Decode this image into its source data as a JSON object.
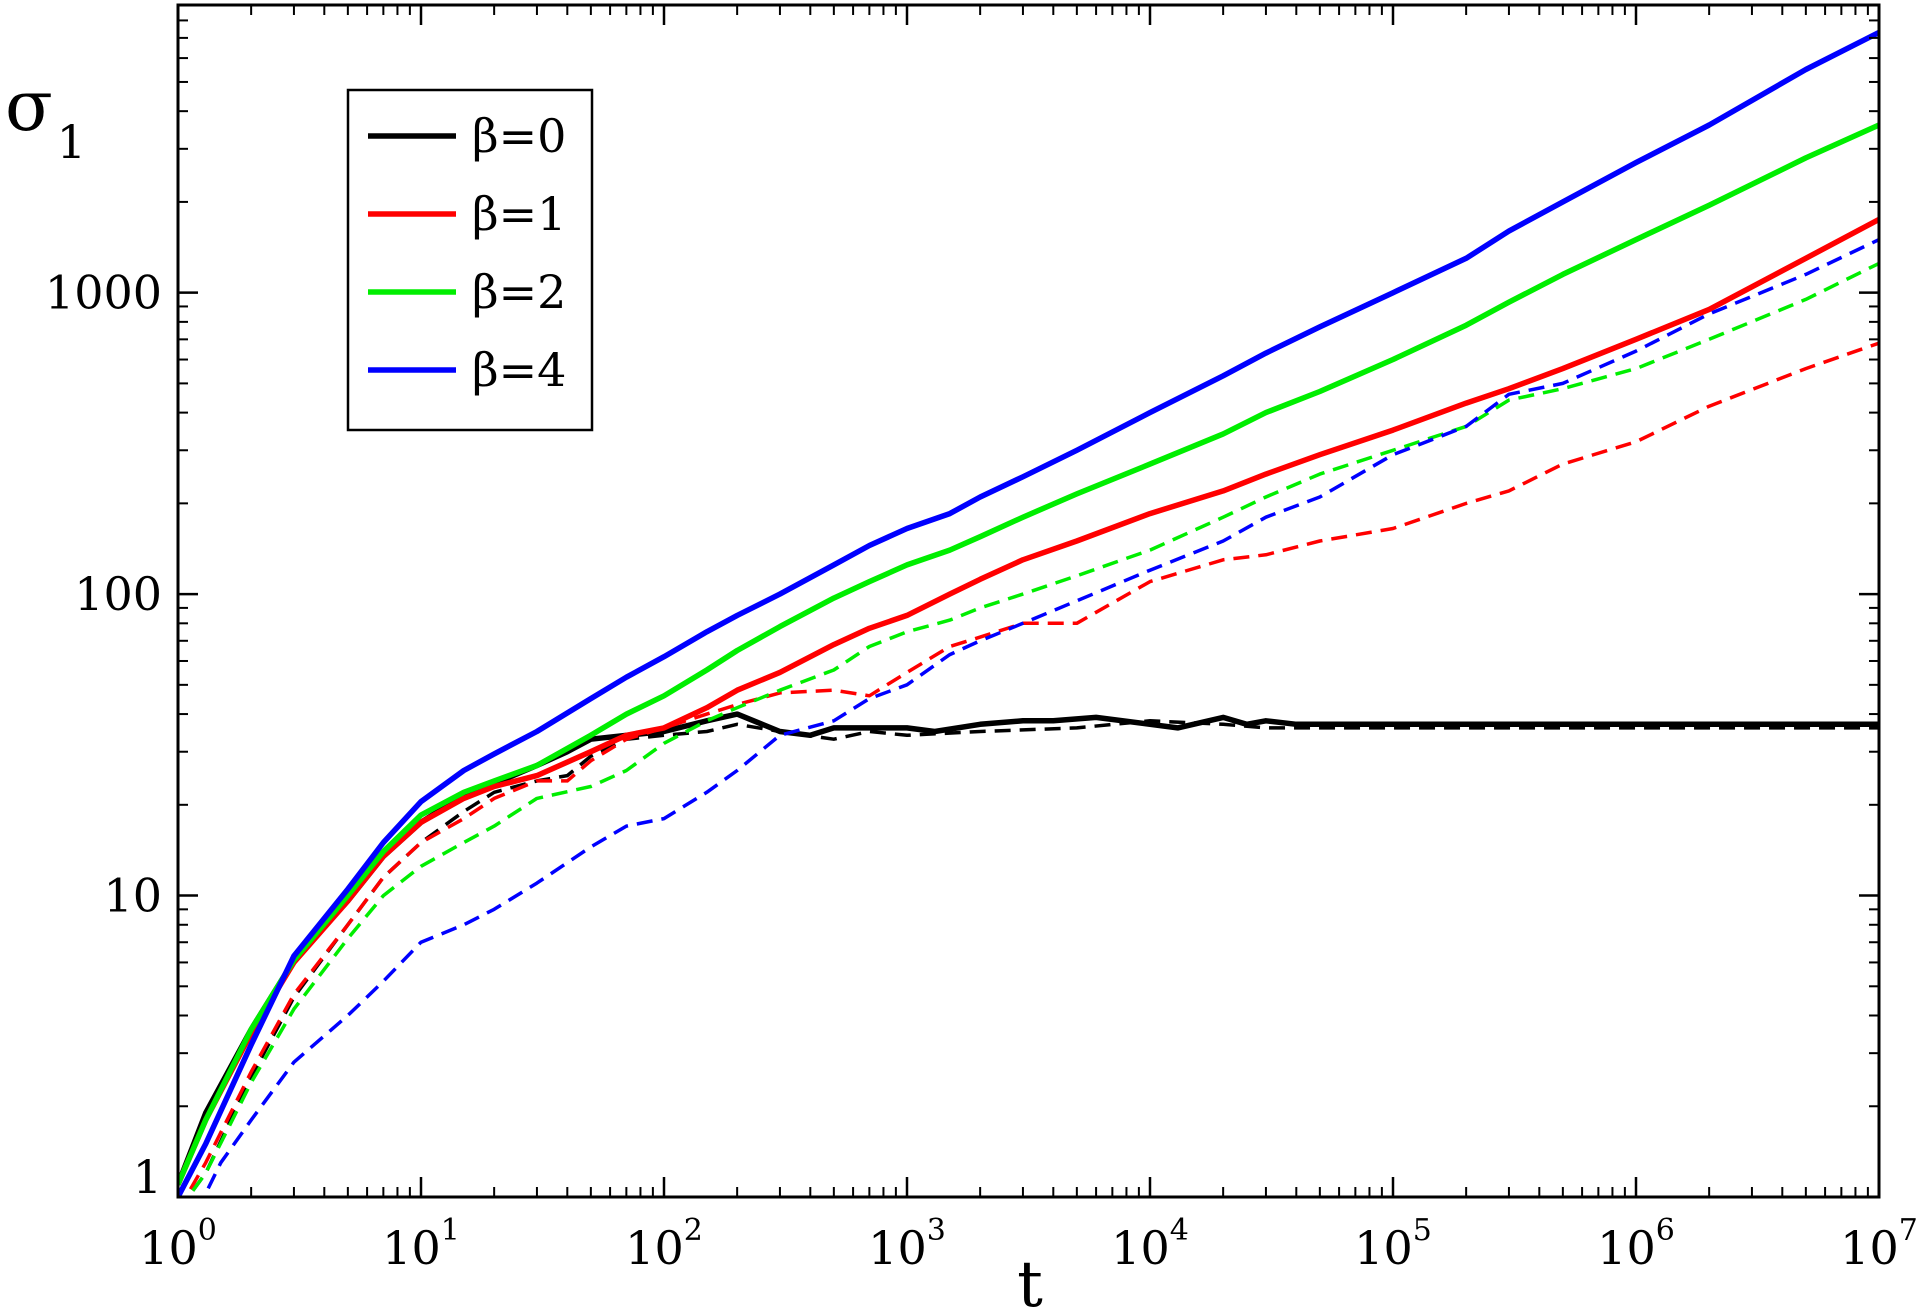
{
  "chart_data": {
    "type": "line",
    "x_scale": "log",
    "y_scale": "log",
    "xlim": [
      1,
      10000000
    ],
    "ylim": [
      1,
      9000
    ],
    "xlabel": "t",
    "ylabel": {
      "base": "σ",
      "sub": "1"
    },
    "x_ticks": [
      {
        "base": "10",
        "exp": "0"
      },
      {
        "base": "10",
        "exp": "1"
      },
      {
        "base": "10",
        "exp": "2"
      },
      {
        "base": "10",
        "exp": "3"
      },
      {
        "base": "10",
        "exp": "4"
      },
      {
        "base": "10",
        "exp": "5"
      },
      {
        "base": "10",
        "exp": "6"
      },
      {
        "base": "10",
        "exp": "7"
      }
    ],
    "y_ticks": [
      "1",
      "10",
      "100",
      "1000"
    ],
    "legend": {
      "position": "top-left"
    },
    "series": [
      {
        "name": "β=0",
        "color": "#000000",
        "style": "solid",
        "x": [
          1,
          1.3,
          2,
          3,
          5,
          7,
          10,
          15,
          20,
          30,
          40,
          50,
          70,
          100,
          150,
          200,
          300,
          400,
          500,
          700,
          1000,
          1300,
          2000,
          3000,
          4000,
          6000,
          10000,
          13000,
          20000,
          25000,
          30000,
          40000,
          100000,
          1000000,
          10000000
        ],
        "y": [
          1.1,
          1.9,
          3.6,
          6.1,
          9.6,
          13.5,
          17.5,
          21.5,
          23.5,
          27,
          30,
          33,
          34,
          35,
          38,
          40,
          35,
          34,
          36,
          36,
          36,
          35,
          37,
          38,
          38,
          39,
          37,
          36,
          39,
          37,
          38,
          37,
          37,
          37,
          37
        ]
      },
      {
        "name": "β=0",
        "color": "#000000",
        "style": "dashed",
        "x": [
          1,
          1.3,
          2,
          3,
          5,
          7,
          10,
          15,
          20,
          30,
          40,
          50,
          70,
          100,
          150,
          200,
          300,
          500,
          700,
          1000,
          2000,
          5000,
          10000,
          20000,
          30000,
          50000,
          1000000,
          10000000
        ],
        "y": [
          0.9,
          1.2,
          2.5,
          4.6,
          8,
          11.5,
          15,
          19,
          22,
          24,
          25,
          29,
          33,
          34,
          35,
          37,
          35,
          33,
          35,
          34,
          35,
          36,
          38,
          37,
          36,
          36,
          36,
          36
        ]
      },
      {
        "name": "β=1",
        "color": "#ff0000",
        "style": "solid",
        "x": [
          1,
          1.3,
          2,
          3,
          5,
          7,
          10,
          15,
          20,
          30,
          50,
          70,
          100,
          150,
          200,
          300,
          500,
          700,
          1000,
          1500,
          2000,
          3000,
          5000,
          10000,
          20000,
          30000,
          50000,
          100000,
          200000,
          300000,
          500000,
          1000000,
          2000000,
          5000000,
          10000000
        ],
        "y": [
          1.1,
          1.8,
          3.5,
          6,
          9.6,
          13.5,
          17.5,
          21,
          23,
          25,
          30,
          34,
          36,
          42,
          48,
          55,
          68,
          77,
          85,
          100,
          112,
          130,
          150,
          185,
          220,
          250,
          290,
          350,
          430,
          480,
          560,
          700,
          880,
          1300,
          1750
        ]
      },
      {
        "name": "β=1",
        "color": "#ff0000",
        "style": "dashed",
        "x": [
          1,
          1.3,
          2,
          3,
          5,
          7,
          10,
          15,
          20,
          30,
          40,
          50,
          70,
          100,
          150,
          200,
          300,
          500,
          700,
          1000,
          1500,
          2000,
          3000,
          5000,
          10000,
          20000,
          30000,
          50000,
          100000,
          200000,
          300000,
          500000,
          1000000,
          2000000,
          5000000,
          10000000
        ],
        "y": [
          0.9,
          1.3,
          2.6,
          4.7,
          8,
          11.5,
          15,
          18,
          21,
          24,
          24,
          28,
          33,
          36,
          40,
          43,
          47,
          48,
          46,
          55,
          67,
          72,
          80,
          80,
          110,
          130,
          135,
          150,
          165,
          200,
          220,
          270,
          320,
          420,
          560,
          680
        ]
      },
      {
        "name": "β=2",
        "color": "#00ee00",
        "style": "solid",
        "x": [
          1,
          1.3,
          2,
          3,
          5,
          7,
          10,
          15,
          20,
          30,
          50,
          70,
          100,
          150,
          200,
          300,
          500,
          700,
          1000,
          1500,
          2000,
          3000,
          5000,
          10000,
          20000,
          30000,
          50000,
          100000,
          200000,
          300000,
          500000,
          1000000,
          2000000,
          5000000,
          10000000
        ],
        "y": [
          1.1,
          1.8,
          3.6,
          6.1,
          10,
          14,
          18.5,
          22,
          24,
          27,
          34,
          40,
          46,
          56,
          65,
          78,
          97,
          110,
          125,
          140,
          155,
          180,
          215,
          270,
          340,
          400,
          470,
          600,
          780,
          930,
          1150,
          1500,
          1950,
          2800,
          3600
        ]
      },
      {
        "name": "β=2",
        "color": "#00ee00",
        "style": "dashed",
        "x": [
          1,
          1.3,
          2,
          3,
          5,
          7,
          10,
          15,
          20,
          30,
          50,
          70,
          100,
          150,
          200,
          300,
          500,
          700,
          1000,
          1500,
          2000,
          3000,
          5000,
          10000,
          20000,
          30000,
          50000,
          100000,
          200000,
          300000,
          500000,
          1000000,
          2000000,
          5000000,
          10000000
        ],
        "y": [
          0.9,
          1.2,
          2.4,
          4.2,
          7.2,
          10,
          12.5,
          15,
          17,
          21,
          23,
          26,
          32,
          38,
          42,
          48,
          56,
          67,
          75,
          82,
          90,
          100,
          115,
          140,
          180,
          210,
          250,
          300,
          360,
          440,
          480,
          560,
          700,
          950,
          1250
        ]
      },
      {
        "name": "β=4",
        "color": "#0000ff",
        "style": "solid",
        "x": [
          1,
          1.3,
          2,
          3,
          5,
          7,
          10,
          15,
          20,
          30,
          50,
          70,
          100,
          150,
          200,
          300,
          500,
          700,
          1000,
          1500,
          2000,
          3000,
          5000,
          10000,
          20000,
          30000,
          50000,
          100000,
          200000,
          300000,
          500000,
          1000000,
          2000000,
          5000000,
          10000000
        ],
        "y": [
          1,
          1.5,
          3.2,
          6.3,
          10.5,
          15,
          20.5,
          26,
          29.5,
          35,
          45,
          53,
          62,
          75,
          85,
          100,
          125,
          145,
          165,
          185,
          210,
          245,
          300,
          400,
          530,
          630,
          770,
          1000,
          1300,
          1600,
          2000,
          2700,
          3600,
          5500,
          7300
        ]
      },
      {
        "name": "β=4",
        "color": "#0000ff",
        "style": "dashed",
        "x": [
          1.2,
          1.5,
          2,
          3,
          5,
          7,
          10,
          15,
          20,
          30,
          50,
          70,
          100,
          150,
          200,
          300,
          500,
          700,
          1000,
          1500,
          2000,
          3000,
          5000,
          10000,
          20000,
          30000,
          50000,
          100000,
          200000,
          300000,
          500000,
          1000000,
          2000000,
          5000000,
          10000000
        ],
        "y": [
          0.9,
          1.3,
          1.8,
          2.8,
          4,
          5.2,
          7,
          8,
          9,
          11,
          14.5,
          17,
          18,
          22,
          26,
          34,
          38,
          45,
          50,
          63,
          70,
          80,
          95,
          120,
          150,
          180,
          210,
          290,
          360,
          460,
          500,
          640,
          850,
          1150,
          1500
        ]
      }
    ]
  }
}
